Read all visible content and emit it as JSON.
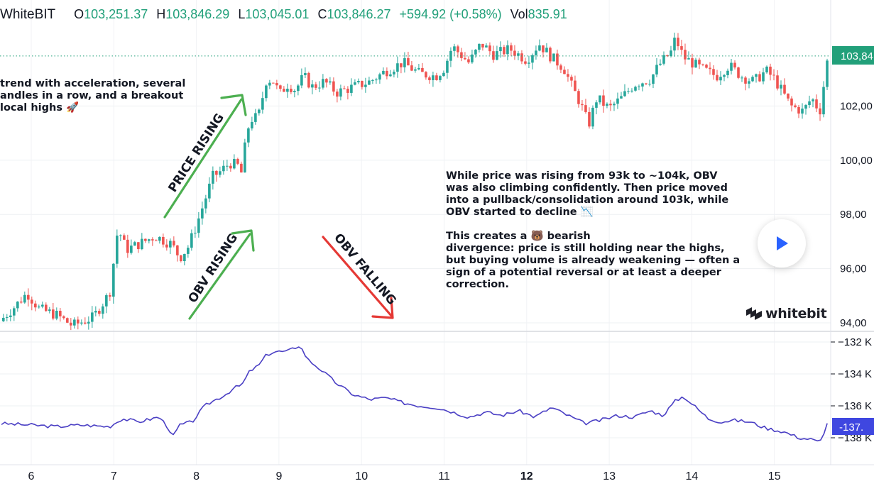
{
  "header": {
    "symbol": "WhiteBIT",
    "open_key": "O",
    "open": "103,251.37",
    "high_key": "H",
    "high": "103,846.29",
    "low_key": "L",
    "low": "103,045.01",
    "close_key": "C",
    "close": "103,846.27",
    "change": "+594.92 (+0.58%)",
    "vol_key": "Vol",
    "vol": "835.91"
  },
  "annotations": {
    "left_note": "trend with acceleration, several\nandles in a row, and a breakout\n local highs 🚀",
    "right_note": "While price was rising from 93k to ~104k, OBV\nwas also climbing confidently. Then price moved\ninto a pullback/consolidation around 103k, while\nOBV started to decline 📉\n\nThis creates a 🐻 bearish\ndivergence: price is still holding near the highs,\nbut buying volume is already weakening — often a\nsign of a potential reversal or at least a deeper\ncorrection.",
    "price_rising": "PRICE RISING",
    "obv_rising": "OBV RISING",
    "obv_falling": "OBV FALLING"
  },
  "logo": {
    "text": "whitebit"
  },
  "price_tag": "103,84",
  "obv_tag": "-137.",
  "colors": {
    "up": "#26a69a",
    "down": "#ef5350",
    "obv_line": "#4a3fc4",
    "price_tag_bg": "#22a07a",
    "obv_tag_bg": "#3f47e0",
    "green_arrow": "#4caf50",
    "red_arrow": "#e53935",
    "play": "#2962ff"
  },
  "chart_data": [
    {
      "type": "candlestick",
      "title": "",
      "xlabel": "",
      "ylabel": "",
      "x_ticks": [
        "6",
        "7",
        "8",
        "9",
        "10",
        "11",
        "12",
        "13",
        "14",
        "15"
      ],
      "y_ticks": [
        "94,00",
        "96,00",
        "98,00",
        "100,00",
        "102,00",
        "103,84"
      ],
      "ylim": [
        93800,
        104700
      ],
      "grid": true,
      "current_value": 103846,
      "close_path": [
        [
          5.6,
          94000
        ],
        [
          5.8,
          94600
        ],
        [
          5.95,
          95100
        ],
        [
          6.1,
          94500
        ],
        [
          6.3,
          94300
        ],
        [
          6.5,
          93900
        ],
        [
          6.75,
          94200
        ],
        [
          6.95,
          95100
        ],
        [
          7.0,
          96300
        ],
        [
          7.05,
          97500
        ],
        [
          7.15,
          96700
        ],
        [
          7.3,
          96900
        ],
        [
          7.5,
          97200
        ],
        [
          7.7,
          96900
        ],
        [
          7.8,
          96400
        ],
        [
          7.9,
          96800
        ],
        [
          8.0,
          97600
        ],
        [
          8.1,
          98500
        ],
        [
          8.2,
          99400
        ],
        [
          8.3,
          99600
        ],
        [
          8.4,
          99900
        ],
        [
          8.5,
          99800
        ],
        [
          8.55,
          99500
        ],
        [
          8.6,
          100800
        ],
        [
          8.65,
          101500
        ],
        [
          8.75,
          101600
        ],
        [
          8.85,
          103000
        ],
        [
          8.95,
          102900
        ],
        [
          9.0,
          102400
        ],
        [
          9.1,
          102800
        ],
        [
          9.2,
          102600
        ],
        [
          9.3,
          103100
        ],
        [
          9.4,
          102700
        ],
        [
          9.55,
          102900
        ],
        [
          9.7,
          102500
        ],
        [
          9.9,
          102700
        ],
        [
          10.1,
          102900
        ],
        [
          10.3,
          103300
        ],
        [
          10.5,
          103600
        ],
        [
          10.7,
          103200
        ],
        [
          10.9,
          103100
        ],
        [
          11.0,
          103400
        ],
        [
          11.1,
          104200
        ],
        [
          11.3,
          103600
        ],
        [
          11.45,
          104300
        ],
        [
          11.6,
          103900
        ],
        [
          11.8,
          104100
        ],
        [
          12.0,
          103700
        ],
        [
          12.15,
          104300
        ],
        [
          12.3,
          103800
        ],
        [
          12.45,
          103400
        ],
        [
          12.55,
          102700
        ],
        [
          12.65,
          102100
        ],
        [
          12.75,
          101300
        ],
        [
          12.85,
          102300
        ],
        [
          13.0,
          101900
        ],
        [
          13.15,
          102300
        ],
        [
          13.3,
          102800
        ],
        [
          13.5,
          103000
        ],
        [
          13.6,
          103500
        ],
        [
          13.75,
          104000
        ],
        [
          13.8,
          104500
        ],
        [
          13.9,
          103800
        ],
        [
          14.1,
          103400
        ],
        [
          14.3,
          103100
        ],
        [
          14.45,
          103500
        ],
        [
          14.6,
          103100
        ],
        [
          14.75,
          102900
        ],
        [
          14.9,
          103300
        ],
        [
          15.0,
          103000
        ],
        [
          15.1,
          102500
        ],
        [
          15.2,
          102000
        ],
        [
          15.35,
          101800
        ],
        [
          15.45,
          102300
        ],
        [
          15.55,
          101800
        ],
        [
          15.65,
          103850
        ]
      ]
    },
    {
      "type": "line",
      "title": "",
      "xlabel": "",
      "ylabel": "",
      "y_ticks": [
        "-132 K",
        "-134 K",
        "-136 K",
        "-138 K"
      ],
      "ylim": [
        -138.4,
        -131.9
      ],
      "series": [
        {
          "name": "",
          "points": [
            [
              5.6,
              -137.1
            ],
            [
              6.0,
              -137.2
            ],
            [
              6.3,
              -137.3
            ],
            [
              6.6,
              -137.2
            ],
            [
              6.95,
              -137.3
            ],
            [
              7.1,
              -136.8
            ],
            [
              7.3,
              -137.0
            ],
            [
              7.55,
              -136.7
            ],
            [
              7.65,
              -137.3
            ],
            [
              7.72,
              -137.9
            ],
            [
              7.8,
              -137.2
            ],
            [
              7.95,
              -137.0
            ],
            [
              8.1,
              -136.0
            ],
            [
              8.2,
              -135.7
            ],
            [
              8.35,
              -135.3
            ],
            [
              8.45,
              -134.9
            ],
            [
              8.55,
              -134.7
            ],
            [
              8.65,
              -133.8
            ],
            [
              8.75,
              -133.5
            ],
            [
              8.85,
              -132.8
            ],
            [
              8.95,
              -132.6
            ],
            [
              9.1,
              -132.6
            ],
            [
              9.25,
              -132.2
            ],
            [
              9.35,
              -133.1
            ],
            [
              9.5,
              -133.7
            ],
            [
              9.7,
              -134.6
            ],
            [
              9.9,
              -135.3
            ],
            [
              10.1,
              -135.6
            ],
            [
              10.3,
              -135.5
            ],
            [
              10.5,
              -135.8
            ],
            [
              10.7,
              -136.0
            ],
            [
              10.9,
              -136.1
            ],
            [
              11.05,
              -136.3
            ],
            [
              11.3,
              -136.7
            ],
            [
              11.5,
              -136.4
            ],
            [
              11.7,
              -136.6
            ],
            [
              11.9,
              -136.3
            ],
            [
              12.1,
              -136.7
            ],
            [
              12.3,
              -136.1
            ],
            [
              12.5,
              -136.6
            ],
            [
              12.7,
              -137.1
            ],
            [
              12.9,
              -136.9
            ],
            [
              13.1,
              -136.6
            ],
            [
              13.3,
              -136.7
            ],
            [
              13.5,
              -136.3
            ],
            [
              13.65,
              -136.6
            ],
            [
              13.8,
              -135.7
            ],
            [
              13.9,
              -135.4
            ],
            [
              14.05,
              -136.1
            ],
            [
              14.2,
              -136.8
            ],
            [
              14.35,
              -137.0
            ],
            [
              14.5,
              -136.9
            ],
            [
              14.7,
              -137.0
            ],
            [
              14.9,
              -137.4
            ],
            [
              15.1,
              -137.6
            ],
            [
              15.3,
              -138.0
            ],
            [
              15.45,
              -138.1
            ],
            [
              15.55,
              -138.3
            ],
            [
              15.65,
              -137.0
            ]
          ]
        }
      ]
    }
  ]
}
